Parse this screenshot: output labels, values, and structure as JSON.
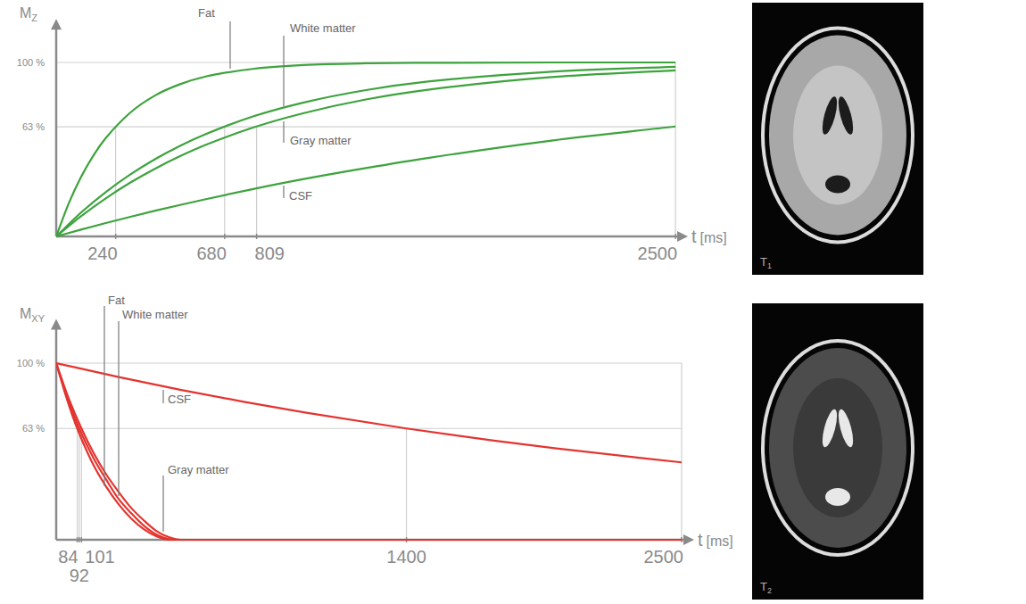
{
  "chart_data": [
    {
      "type": "line",
      "y_label": {
        "main": "M",
        "sub": "Z"
      },
      "x_label": {
        "main": "t",
        "unit": "[ms]"
      },
      "xlim": [
        0,
        2550
      ],
      "ylim": [
        0,
        125
      ],
      "xticks": [
        240,
        680,
        809,
        2500
      ],
      "yticks": [
        {
          "value": 63,
          "label": "63 %"
        },
        {
          "value": 100,
          "label": "100 %"
        }
      ],
      "grid": true,
      "series": [
        {
          "name": "Fat",
          "color": "#3da33d",
          "x": [
            0,
            50,
            100,
            150,
            200,
            300,
            400,
            500,
            600,
            800,
            1000,
            1250,
            1500,
            2000,
            2500
          ],
          "values": [
            0,
            18.8,
            34.1,
            46.5,
            56.5,
            71.3,
            81.1,
            87.5,
            91.8,
            96.4,
            98.5,
            99.5,
            99.8,
            100,
            100
          ]
        },
        {
          "name": "White matter",
          "color": "#3da33d",
          "x": [
            0,
            100,
            200,
            300,
            400,
            500,
            600,
            800,
            1000,
            1250,
            1500,
            2000,
            2500
          ],
          "values": [
            0,
            13.7,
            25.5,
            35.7,
            44.5,
            52.1,
            58.6,
            69.2,
            77.0,
            84.1,
            89.0,
            94.7,
            97.5
          ]
        },
        {
          "name": "Gray matter",
          "color": "#3da33d",
          "x": [
            0,
            100,
            200,
            300,
            400,
            500,
            600,
            800,
            1000,
            1250,
            1500,
            2000,
            2500
          ],
          "values": [
            0,
            11.6,
            21.9,
            31.0,
            39.0,
            46.1,
            52.4,
            62.8,
            70.9,
            78.7,
            84.3,
            91.6,
            95.5
          ]
        },
        {
          "name": "CSF",
          "color": "#3da33d",
          "x": [
            0,
            100,
            200,
            300,
            400,
            500,
            600,
            800,
            1000,
            1250,
            1500,
            2000,
            2500
          ],
          "values": [
            0,
            3.9,
            7.7,
            11.3,
            14.8,
            18.1,
            21.3,
            27.4,
            33.0,
            39.3,
            45.1,
            55.1,
            63.2
          ]
        }
      ]
    },
    {
      "type": "line",
      "y_label": {
        "main": "M",
        "sub": "XY"
      },
      "x_label": {
        "main": "t",
        "unit": "[ms]"
      },
      "xlim": [
        0,
        2550
      ],
      "ylim": [
        0,
        125
      ],
      "xticks": [
        84,
        92,
        101,
        1400,
        2500
      ],
      "yticks": [
        {
          "value": 63,
          "label": "63 %"
        },
        {
          "value": 100,
          "label": "100 %"
        }
      ],
      "grid": true,
      "series": [
        {
          "name": "Fat",
          "color": "#e3342f",
          "x": [
            0,
            42,
            84,
            150,
            200,
            250,
            300,
            350,
            400,
            450,
            2500
          ],
          "values": [
            100,
            80,
            63,
            42,
            30,
            20,
            12,
            6,
            2,
            0,
            0
          ]
        },
        {
          "name": "White matter",
          "color": "#e3342f",
          "x": [
            0,
            46,
            92,
            150,
            200,
            250,
            300,
            350,
            400,
            470,
            2500
          ],
          "values": [
            100,
            80,
            63,
            46,
            34,
            23,
            15,
            8,
            3,
            0,
            0
          ]
        },
        {
          "name": "Gray matter",
          "color": "#e3342f",
          "x": [
            0,
            50,
            101,
            150,
            200,
            250,
            300,
            350,
            400,
            450,
            500,
            2500
          ],
          "values": [
            100,
            80,
            63,
            49,
            37,
            27,
            18,
            11,
            5,
            1.5,
            0,
            0
          ]
        },
        {
          "name": "CSF",
          "color": "#e3342f",
          "x": [
            0,
            250,
            500,
            750,
            1000,
            1400,
            1750,
            2000,
            2500
          ],
          "values": [
            100,
            92.1,
            84.8,
            78.1,
            71.9,
            63,
            56.1,
            51.7,
            43.8
          ]
        }
      ]
    }
  ],
  "images": [
    {
      "label": {
        "main": "T",
        "sub": "1"
      }
    },
    {
      "label": {
        "main": "T",
        "sub": "2"
      }
    }
  ]
}
